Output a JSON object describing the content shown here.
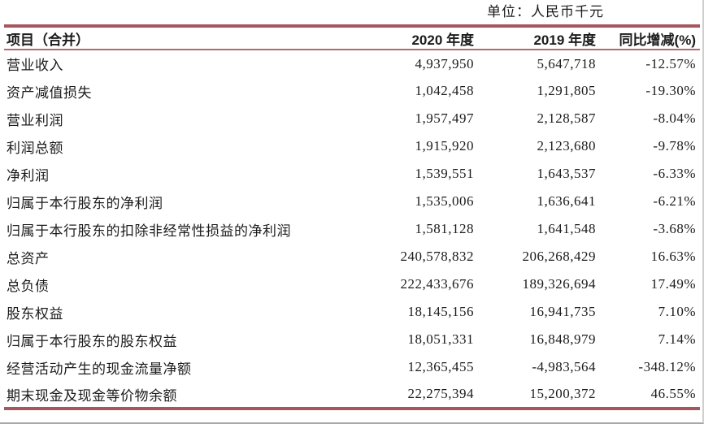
{
  "unit_label": "单位：人民币千元",
  "columns": [
    "项目（合并）",
    "2020 年度",
    "2019 年度",
    "同比增减(%)"
  ],
  "rows": [
    {
      "label": "营业收入",
      "y2020": "4,937,950",
      "y2019": "5,647,718",
      "yoy": "-12.57%"
    },
    {
      "label": "资产减值损失",
      "y2020": "1,042,458",
      "y2019": "1,291,805",
      "yoy": "-19.30%"
    },
    {
      "label": "营业利润",
      "y2020": "1,957,497",
      "y2019": "2,128,587",
      "yoy": "-8.04%"
    },
    {
      "label": "利润总额",
      "y2020": "1,915,920",
      "y2019": "2,123,680",
      "yoy": "-9.78%"
    },
    {
      "label": "净利润",
      "y2020": "1,539,551",
      "y2019": "1,643,537",
      "yoy": "-6.33%"
    },
    {
      "label": "归属于本行股东的净利润",
      "y2020": "1,535,006",
      "y2019": "1,636,641",
      "yoy": "-6.21%"
    },
    {
      "label": "归属于本行股东的扣除非经常性损益的净利润",
      "y2020": "1,581,128",
      "y2019": "1,641,548",
      "yoy": "-3.68%"
    },
    {
      "label": "总资产",
      "y2020": "240,578,832",
      "y2019": "206,268,429",
      "yoy": "16.63%"
    },
    {
      "label": "总负债",
      "y2020": "222,433,676",
      "y2019": "189,326,694",
      "yoy": "17.49%"
    },
    {
      "label": "股东权益",
      "y2020": "18,145,156",
      "y2019": "16,941,735",
      "yoy": "7.10%"
    },
    {
      "label": "归属于本行股东的股东权益",
      "y2020": "18,051,331",
      "y2019": "16,848,979",
      "yoy": "7.14%"
    },
    {
      "label": "经营活动产生的现金流量净额",
      "y2020": "12,365,455",
      "y2019": "-4,983,564",
      "yoy": "-348.12%"
    },
    {
      "label": "期末现金及现金等价物余额",
      "y2020": "22,275,394",
      "y2019": "15,200,372",
      "yoy": "46.55%"
    }
  ],
  "colors": {
    "border_accent": "#a6575e",
    "header_rule": "#b26a70",
    "text": "#1b1b1b"
  }
}
